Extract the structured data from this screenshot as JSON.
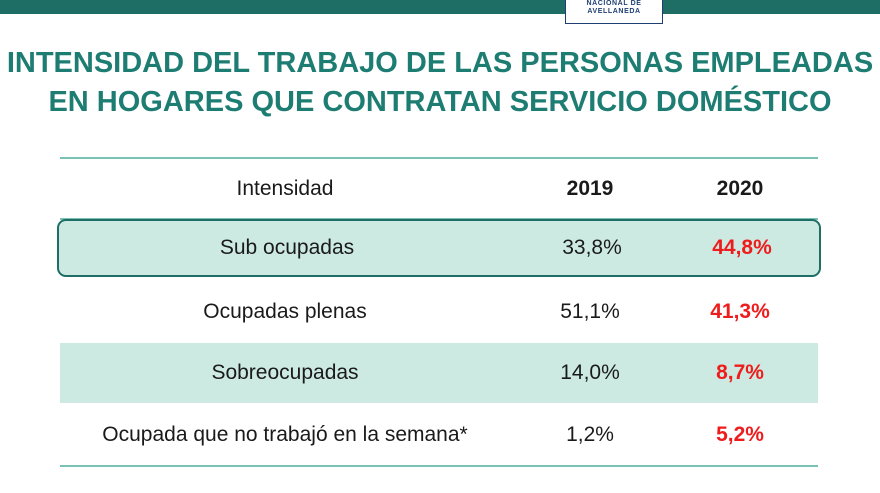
{
  "header": {
    "logo_line1": "NACIONAL DE",
    "logo_line2": "AVELLANEDA",
    "bar_color": "#1e6e66"
  },
  "title": {
    "line1": "INTENSIDAD DEL TRABAJO DE LAS PERSONAS EMPLEADAS",
    "line2": "EN HOGARES QUE CONTRATAN SERVICIO DOMÉSTICO",
    "color": "#1e7d72"
  },
  "table": {
    "columns": [
      "Intensidad",
      "2019",
      "2020"
    ],
    "rows": [
      {
        "label": "Sub ocupadas",
        "y2019": "33,8%",
        "y2020": "44,8%"
      },
      {
        "label": "Ocupadas plenas",
        "y2019": "51,1%",
        "y2020": "41,3%"
      },
      {
        "label": "Sobreocupadas",
        "y2019": "14,0%",
        "y2020": "8,7%"
      },
      {
        "label": "Ocupada que no trabajó en la semana*",
        "y2019": "1,2%",
        "y2020": "5,2%"
      }
    ],
    "accent_color": "#ee1c1c",
    "row_shade_color": "#cdeae2"
  }
}
